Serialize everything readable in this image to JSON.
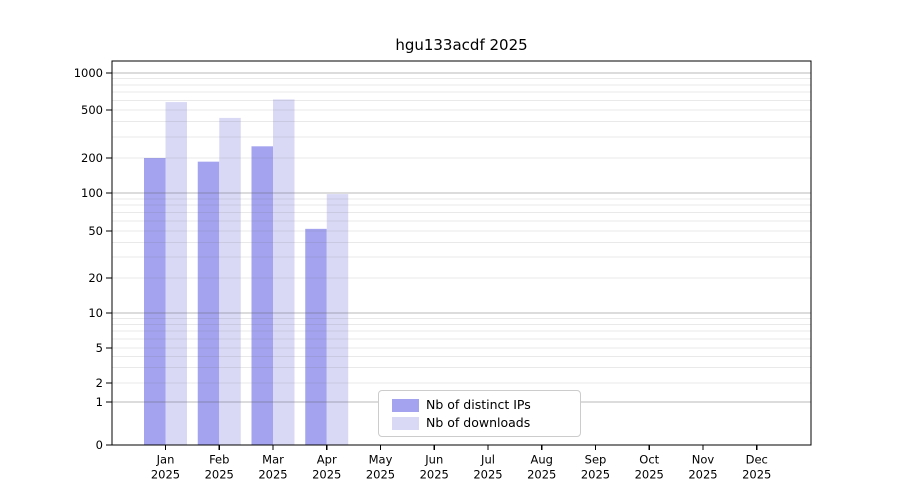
{
  "title": "hgu133acdf 2025",
  "legend": {
    "items": [
      {
        "label": "Nb of distinct IPs",
        "color": "#a3a3ef"
      },
      {
        "label": "Nb of downloads",
        "color": "#d9d9f6"
      }
    ]
  },
  "chart_data": {
    "type": "bar",
    "title": "hgu133acdf 2025",
    "categories": [
      "Jan 2025",
      "Feb 2025",
      "Mar 2025",
      "Apr 2025",
      "May 2025",
      "Jun 2025",
      "Jul 2025",
      "Aug 2025",
      "Sep 2025",
      "Oct 2025",
      "Nov 2025",
      "Dec 2025"
    ],
    "x_tick_line1": [
      "Jan",
      "Feb",
      "Mar",
      "Apr",
      "May",
      "Jun",
      "Jul",
      "Aug",
      "Sep",
      "Oct",
      "Nov",
      "Dec"
    ],
    "x_tick_line2": [
      "2025",
      "2025",
      "2025",
      "2025",
      "2025",
      "2025",
      "2025",
      "2025",
      "2025",
      "2025",
      "2025",
      "2025"
    ],
    "series": [
      {
        "name": "Nb of distinct IPs",
        "color": "#a3a3ef",
        "values": [
          200,
          186,
          250,
          52,
          0,
          0,
          0,
          0,
          0,
          0,
          0,
          0
        ]
      },
      {
        "name": "Nb of downloads",
        "color": "#d9d9f6",
        "values": [
          580,
          430,
          610,
          98,
          0,
          0,
          0,
          0,
          0,
          0,
          0,
          0
        ]
      }
    ],
    "yticks": [
      0,
      1,
      2,
      5,
      10,
      20,
      50,
      100,
      200,
      500,
      1000
    ],
    "ytick_labels": [
      "0",
      "1",
      "2",
      "5",
      "10",
      "20",
      "50",
      "100",
      "200",
      "500",
      "1000"
    ],
    "xlabel": "",
    "ylabel": "",
    "yscale": "log-like with 0 baseline",
    "ylim": [
      0,
      1150
    ],
    "grid": "horizontal, minor light + major darker at powers of 10",
    "legend_position": "inside, lower center-left",
    "bar_edge": "none"
  }
}
